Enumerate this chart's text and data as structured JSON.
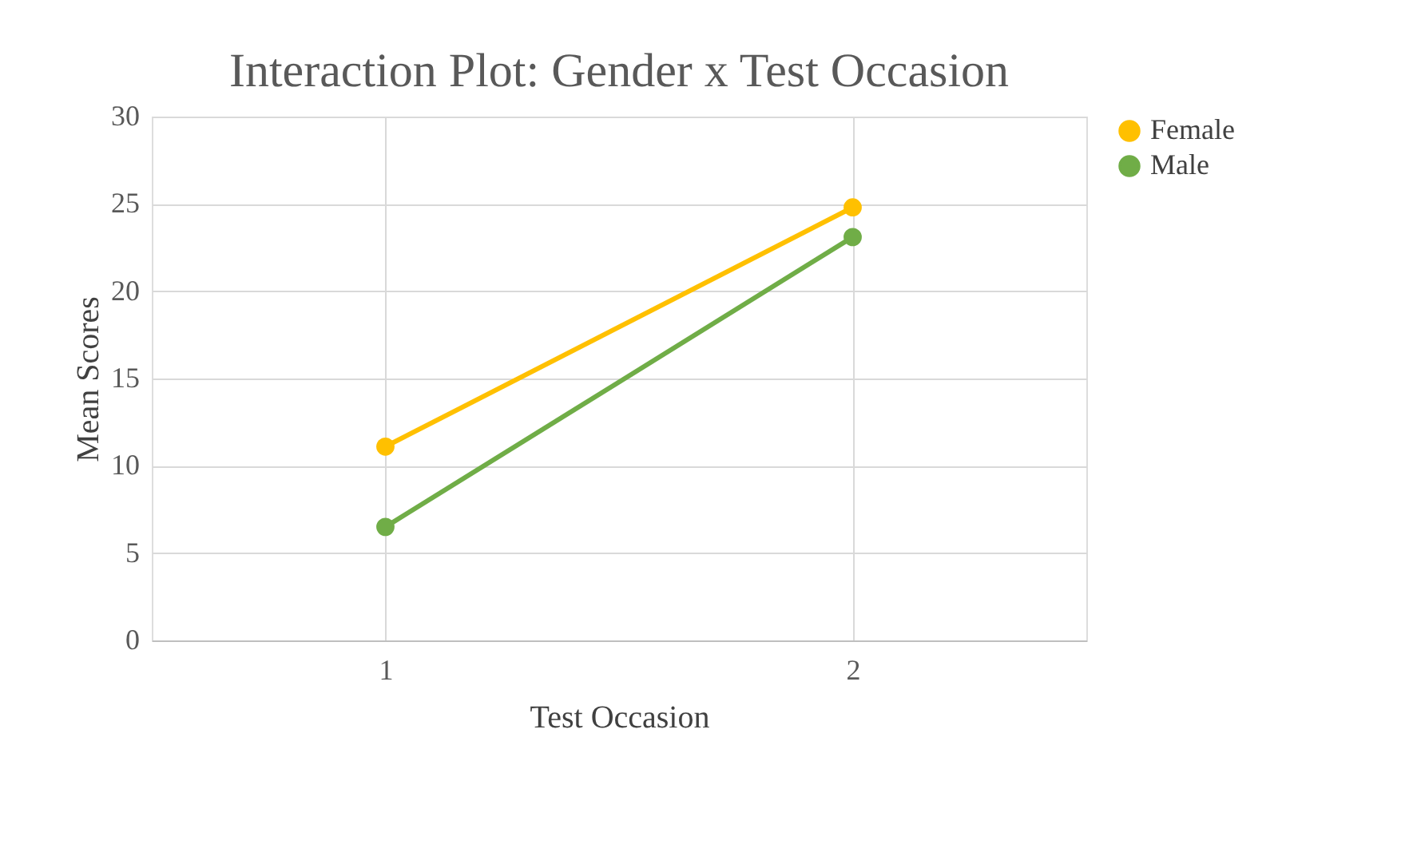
{
  "chart_data": {
    "type": "line",
    "title": "Interaction Plot: Gender x Test Occasion",
    "xlabel": "Test Occasion",
    "ylabel": "Mean Scores",
    "categories": [
      "1",
      "2"
    ],
    "series": [
      {
        "name": "Female",
        "color": "#ffc000",
        "values": [
          11.1,
          24.8
        ]
      },
      {
        "name": "Male",
        "color": "#70ad47",
        "values": [
          6.5,
          23.1
        ]
      }
    ],
    "ylim": [
      0,
      30
    ],
    "yticks": [
      0,
      5,
      10,
      15,
      20,
      25,
      30
    ],
    "grid": true,
    "legend": "right",
    "marker": "circle",
    "line_style": "solid"
  }
}
